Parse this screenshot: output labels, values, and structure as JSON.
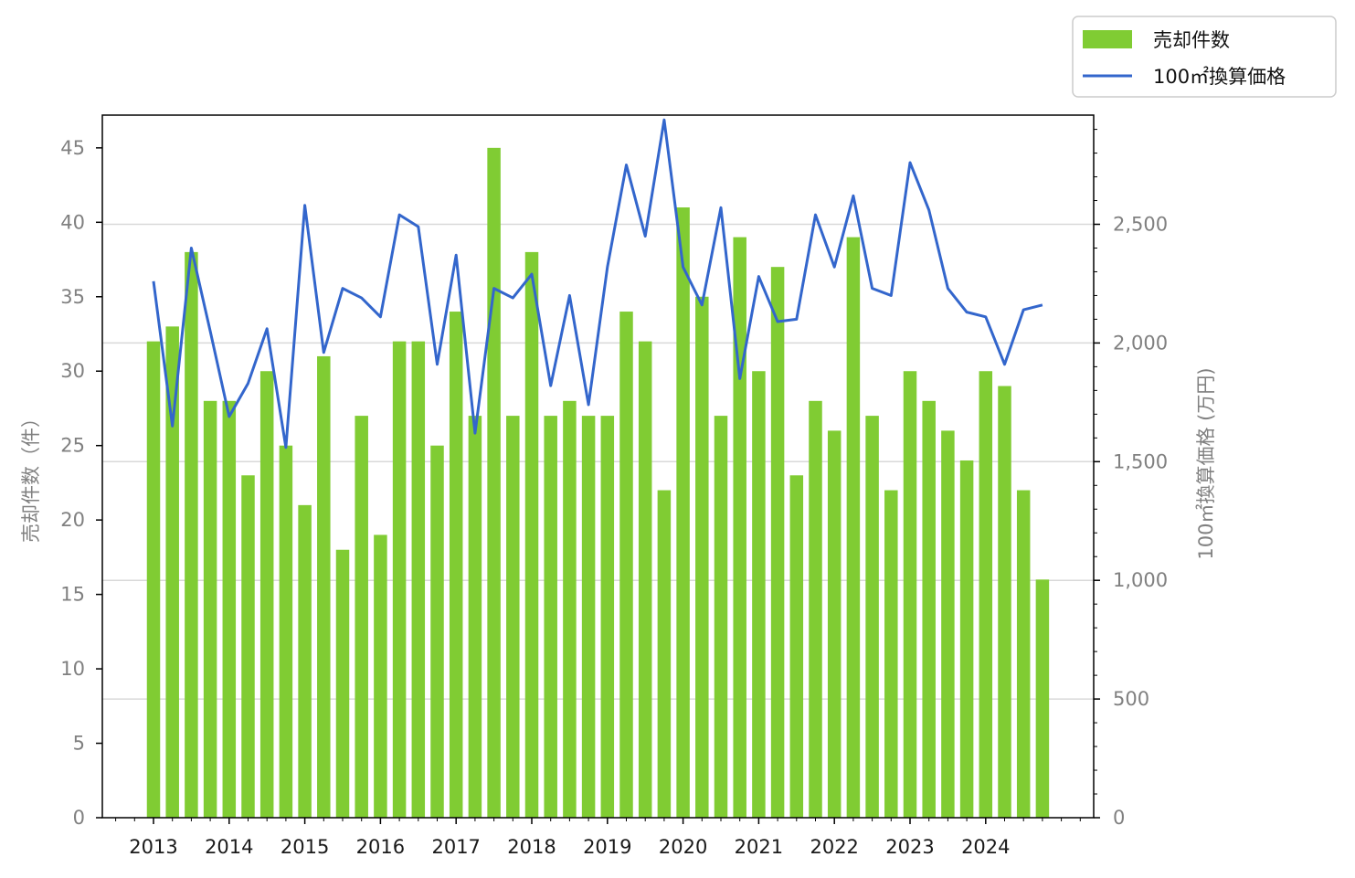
{
  "chart_data": {
    "type": "bar+line",
    "x_tick_labels": [
      "2013",
      "2014",
      "2015",
      "2016",
      "2017",
      "2018",
      "2019",
      "2020",
      "2021",
      "2022",
      "2023",
      "2024"
    ],
    "ylabel_left": "売却件数（件）",
    "ylabel_right": "100㎡換算価格 (万円)",
    "ylim_left": [
      0,
      47.2
    ],
    "ylim_right": [
      0,
      2960
    ],
    "left_ticks": [
      0,
      5,
      10,
      15,
      20,
      25,
      30,
      35,
      40,
      45
    ],
    "right_ticks": [
      0,
      500,
      1000,
      1500,
      2000,
      2500
    ],
    "right_tick_labels": [
      "0",
      "500",
      "1,000",
      "1,500",
      "2,000",
      "2,500"
    ],
    "grid": "horizontal at right-axis ticks",
    "legend_position": "top-right, outside plot",
    "series": [
      {
        "name": "売却件数",
        "kind": "bar",
        "axis": "left",
        "color": "#80cc33",
        "values": [
          32,
          33,
          38,
          28,
          28,
          23,
          30,
          25,
          21,
          31,
          18,
          27,
          19,
          32,
          32,
          25,
          34,
          27,
          45,
          27,
          38,
          27,
          28,
          27,
          27,
          34,
          32,
          22,
          41,
          35,
          27,
          39,
          30,
          37,
          23,
          28,
          26,
          39,
          27,
          22,
          30,
          28,
          26,
          24,
          30,
          29,
          22,
          16
        ]
      },
      {
        "name": "100㎡換算価格",
        "kind": "line",
        "axis": "right",
        "color": "#3366cc",
        "values": [
          2260,
          1650,
          2400,
          2050,
          1690,
          1830,
          2060,
          1560,
          2580,
          1960,
          2230,
          2190,
          2110,
          2540,
          2490,
          1910,
          2370,
          1620,
          2230,
          2190,
          2290,
          1820,
          2200,
          1740,
          2320,
          2750,
          2450,
          2940,
          2320,
          2160,
          2570,
          1850,
          2280,
          2090,
          2100,
          2540,
          2320,
          2620,
          2230,
          2200,
          2760,
          2560,
          2230,
          2130,
          2110,
          1910,
          2140,
          2160
        ]
      }
    ]
  }
}
